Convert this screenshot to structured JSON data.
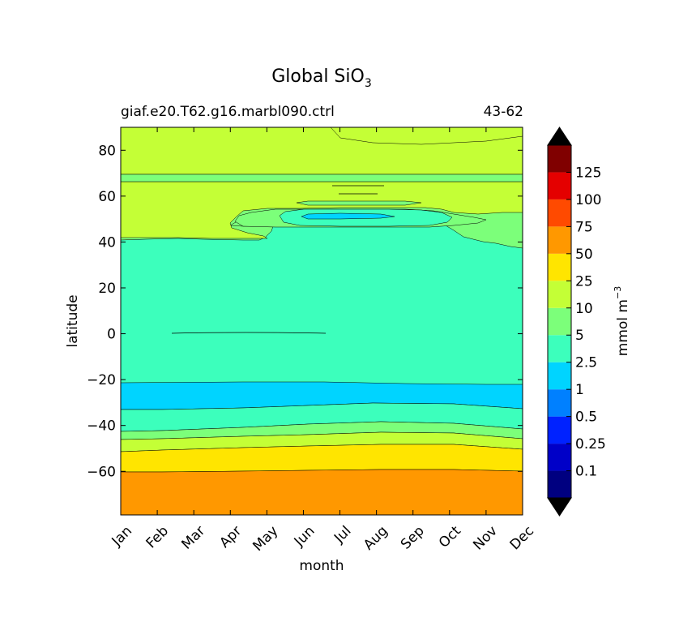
{
  "chart_data": {
    "type": "contour",
    "title_main": "Global SiO",
    "title_sub": "3",
    "case_name": "giaf.e20.T62.g16.marbl090.ctrl",
    "years": "43-62",
    "xlabel": "month",
    "ylabel": "latitude",
    "x_categories": [
      "Jan",
      "Feb",
      "Mar",
      "Apr",
      "May",
      "Jun",
      "Jul",
      "Aug",
      "Sep",
      "Oct",
      "Nov",
      "Dec"
    ],
    "yticks": [
      {
        "value": 80,
        "label": "80"
      },
      {
        "value": 60,
        "label": "60"
      },
      {
        "value": 40,
        "label": "40"
      },
      {
        "value": 20,
        "label": "20"
      },
      {
        "value": 0,
        "label": "0"
      },
      {
        "value": -20,
        "label": "−20"
      },
      {
        "value": -40,
        "label": "−40"
      },
      {
        "value": -60,
        "label": "−60"
      }
    ],
    "ylim": [
      -79,
      90
    ],
    "colorbar": {
      "unit_label": "mmol m",
      "unit_exp": "−3",
      "extend": "both",
      "under_color": "#000000",
      "over_color": "#000000",
      "levels": [
        {
          "label": "",
          "color": "#000080"
        },
        {
          "label": "0.1",
          "color": "#0000c8"
        },
        {
          "label": "0.25",
          "color": "#0022ff"
        },
        {
          "label": "0.5",
          "color": "#0080ff"
        },
        {
          "label": "1",
          "color": "#00d4ff"
        },
        {
          "label": "2.5",
          "color": "#3cffbc"
        },
        {
          "label": "5",
          "color": "#7cff7a"
        },
        {
          "label": "10",
          "color": "#c4ff36"
        },
        {
          "label": "25",
          "color": "#ffe500"
        },
        {
          "label": "50",
          "color": "#ff9800"
        },
        {
          "label": "75",
          "color": "#ff4a00"
        },
        {
          "label": "100",
          "color": "#e40000"
        },
        {
          "label": "125",
          "color": "#800000"
        }
      ]
    },
    "regions": [
      {
        "level": "50-75",
        "color": "#ff9800",
        "lat_range": [
          -79,
          -59.5
        ]
      },
      {
        "level": "25-50",
        "color": "#ffe500",
        "lat_range": [
          -59.5,
          -49
        ]
      },
      {
        "level": "10-25",
        "color": "#c4ff36",
        "lat_range": [
          -51,
          -45
        ]
      },
      {
        "level": "5-10",
        "color": "#7cff7a",
        "lat_range": [
          -45,
          -40
        ]
      },
      {
        "level": "2.5-5",
        "color": "#3cffbc",
        "lat_range": [
          -40,
          -30
        ]
      },
      {
        "level": "1-2.5",
        "color": "#00d4ff",
        "lat_range": [
          -32,
          -21
        ]
      },
      {
        "level": "2.5-5",
        "color": "#3cffbc",
        "lat_range": [
          -21,
          41
        ]
      },
      {
        "level": "5-10",
        "color": "#7cff7a",
        "lat_range": [
          35,
          48
        ]
      },
      {
        "level": "10-25",
        "color": "#c4ff36",
        "lat_range": [
          45,
          90
        ]
      }
    ]
  }
}
